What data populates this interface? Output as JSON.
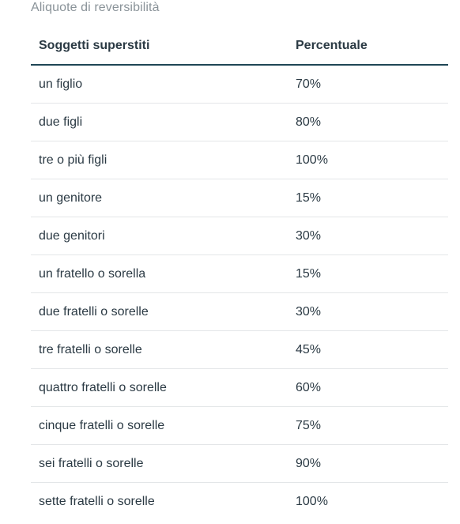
{
  "caption": "Aliquote di reversibilità",
  "table": {
    "headers": [
      "Soggetti superstiti",
      "Percentuale"
    ],
    "rows": [
      [
        "un figlio",
        "70%"
      ],
      [
        "due figli",
        "80%"
      ],
      [
        "tre o più figli",
        "100%"
      ],
      [
        "un genitore",
        "15%"
      ],
      [
        "due genitori",
        "30%"
      ],
      [
        "un fratello o sorella",
        "15%"
      ],
      [
        "due fratelli o sorelle",
        "30%"
      ],
      [
        "tre fratelli o sorelle",
        "45%"
      ],
      [
        "quattro fratelli o sorelle",
        "60%"
      ],
      [
        "cinque fratelli o sorelle",
        "75%"
      ],
      [
        "sei fratelli o sorelle",
        "90%"
      ],
      [
        "sette fratelli o sorelle",
        "100%"
      ]
    ]
  }
}
